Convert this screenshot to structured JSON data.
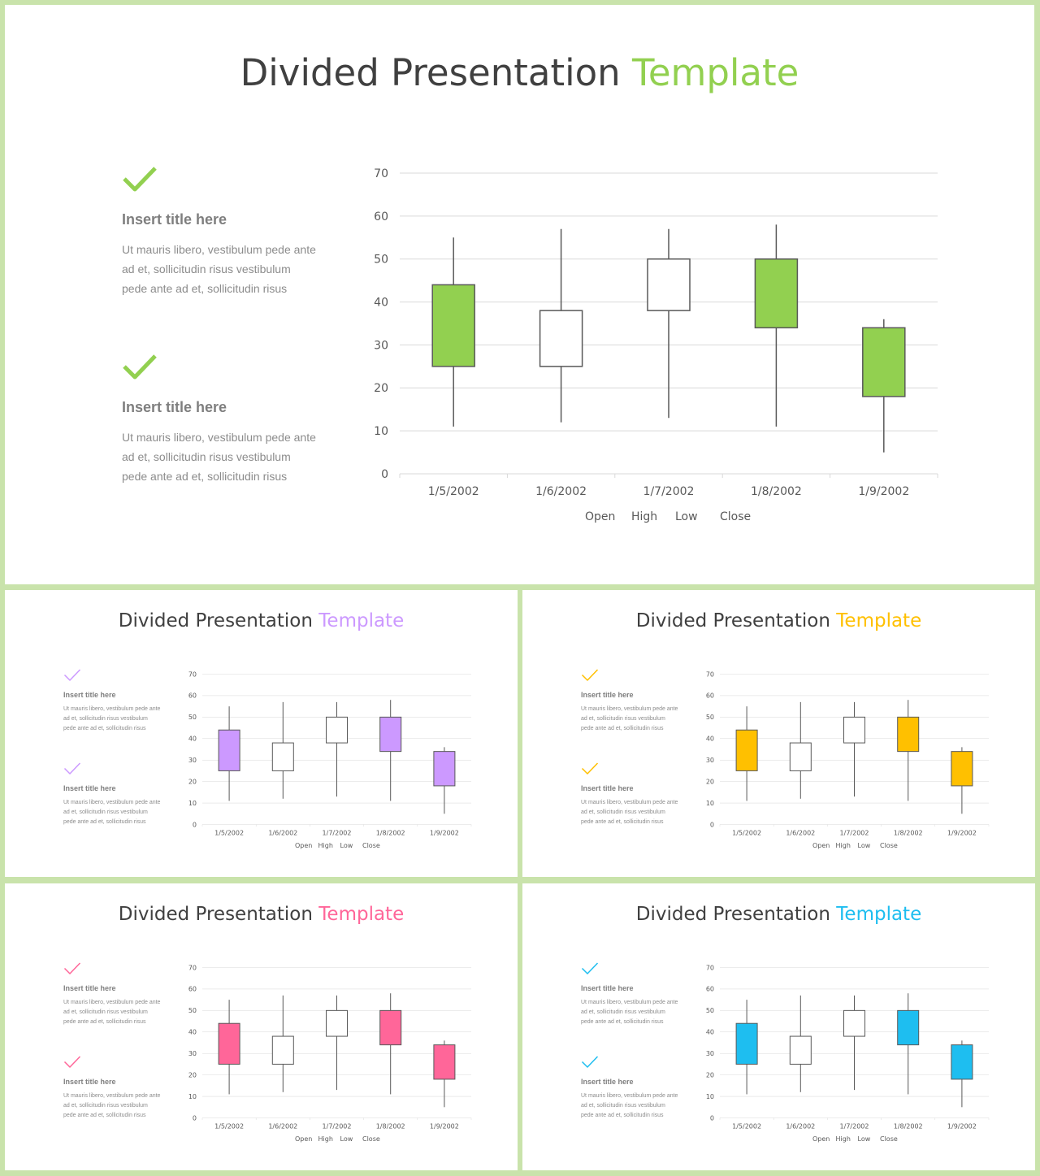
{
  "slides": [
    {
      "title": "Divided Presentation",
      "title_accent": "Template",
      "accent_color": "#92d050",
      "points": [
        {
          "icon": "check-icon",
          "title": "Insert title here",
          "text": "Ut mauris libero, vestibulum pede ante ad et, sollicitudin risus vestibulum pede ante ad et, sollicitudin risus"
        },
        {
          "icon": "check-icon",
          "title": "Insert title here",
          "text": "Ut mauris libero, vestibulum pede ante ad et, sollicitudin risus vestibulum pede ante ad et, sollicitudin risus"
        }
      ]
    },
    {
      "title": "Divided Presentation",
      "title_accent": "Template",
      "accent_color": "#cc99ff",
      "points": [
        {
          "icon": "check-icon",
          "title": "Insert title here",
          "text": "Ut mauris libero, vestibulum pede ante ad et, sollicitudin risus vestibulum pede ante ad et, sollicitudin risus"
        },
        {
          "icon": "check-icon",
          "title": "Insert title here",
          "text": "Ut mauris libero, vestibulum pede ante ad et, sollicitudin risus vestibulum pede ante ad et, sollicitudin risus"
        }
      ]
    },
    {
      "title": "Divided Presentation",
      "title_accent": "Template",
      "accent_color": "#ffc000",
      "points": [
        {
          "icon": "check-icon",
          "title": "Insert title here",
          "text": "Ut mauris libero, vestibulum pede ante ad et, sollicitudin risus vestibulum pede ante ad et, sollicitudin risus"
        },
        {
          "icon": "check-icon",
          "title": "Insert title here",
          "text": "Ut mauris libero, vestibulum pede ante ad et, sollicitudin risus vestibulum pede ante ad et, sollicitudin risus"
        }
      ]
    },
    {
      "title": "Divided Presentation",
      "title_accent": "Template",
      "accent_color": "#ff6699",
      "points": [
        {
          "icon": "check-icon",
          "title": "Insert title here",
          "text": "Ut mauris libero, vestibulum pede ante ad et, sollicitudin risus vestibulum pede ante ad et, sollicitudin risus"
        },
        {
          "icon": "check-icon",
          "title": "Insert title here",
          "text": "Ut mauris libero, vestibulum pede ante ad et, sollicitudin risus vestibulum pede ante ad et, sollicitudin risus"
        }
      ]
    },
    {
      "title": "Divided Presentation",
      "title_accent": "Template",
      "accent_color": "#1ebef0",
      "points": [
        {
          "icon": "check-icon",
          "title": "Insert title here",
          "text": "Ut mauris libero, vestibulum pede ante ad et, sollicitudin risus vestibulum pede ante ad et, sollicitudin risus"
        },
        {
          "icon": "check-icon",
          "title": "Insert title here",
          "text": "Ut mauris libero, vestibulum pede ante ad et, sollicitudin risus vestibulum pede ante ad et, sollicitudin risus"
        }
      ]
    }
  ],
  "colors": {
    "frame": "#c9e3ab",
    "title_text": "#404040",
    "gridline": "#d9d9d9",
    "wick": "#595959",
    "axis_text": "#595959",
    "up_body": "#ffffff"
  },
  "chart_data": {
    "type": "candlestick",
    "title": "",
    "categories": [
      "1/5/2002",
      "1/6/2002",
      "1/7/2002",
      "1/8/2002",
      "1/9/2002"
    ],
    "series": [
      {
        "name": "Open",
        "values": [
          44,
          25,
          38,
          50,
          34
        ]
      },
      {
        "name": "High",
        "values": [
          55,
          57,
          57,
          58,
          36
        ]
      },
      {
        "name": "Low",
        "values": [
          11,
          12,
          13,
          11,
          5
        ]
      },
      {
        "name": "Close",
        "values": [
          25,
          38,
          50,
          34,
          18
        ]
      }
    ],
    "legend": [
      "Open",
      "High",
      "Low",
      "Close"
    ],
    "legend_position": "bottom",
    "ylim": [
      0,
      70
    ],
    "yticks": [
      0,
      10,
      20,
      30,
      40,
      50,
      60,
      70
    ],
    "grid": true,
    "xlabel": "",
    "ylabel": ""
  }
}
